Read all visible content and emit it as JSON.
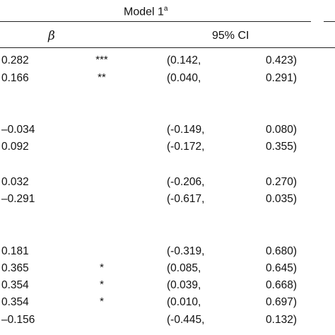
{
  "header": {
    "model_label": "Model 1",
    "model_superscript": "a",
    "beta_label": "β",
    "ci_label": "95% CI"
  },
  "rows": [
    {
      "beta": "0.282",
      "sig": "***",
      "ci_low": "(0.142,",
      "ci_high": "0.423)"
    },
    {
      "beta": "0.166",
      "sig": "**",
      "ci_low": "(0.040,",
      "ci_high": "0.291)"
    },
    {
      "beta": "–0.034",
      "sig": "",
      "ci_low": "(-0.149,",
      "ci_high": "0.080)"
    },
    {
      "beta": "0.092",
      "sig": "",
      "ci_low": "(-0.172,",
      "ci_high": "0.355)"
    },
    {
      "beta": "0.032",
      "sig": "",
      "ci_low": "(-0.206,",
      "ci_high": "0.270)"
    },
    {
      "beta": "–0.291",
      "sig": "",
      "ci_low": "(-0.617,",
      "ci_high": "0.035)"
    },
    {
      "beta": "0.181",
      "sig": "",
      "ci_low": "(-0.319,",
      "ci_high": "0.680)"
    },
    {
      "beta": "0.365",
      "sig": "*",
      "ci_low": "(0.085,",
      "ci_high": "0.645)"
    },
    {
      "beta": "0.354",
      "sig": "*",
      "ci_low": "(0.039,",
      "ci_high": "0.668)"
    },
    {
      "beta": "0.354",
      "sig": "*",
      "ci_low": "(0.010,",
      "ci_high": "0.697)"
    },
    {
      "beta": "–0.156",
      "sig": "",
      "ci_low": "(-0.445,",
      "ci_high": "0.132)"
    }
  ]
}
